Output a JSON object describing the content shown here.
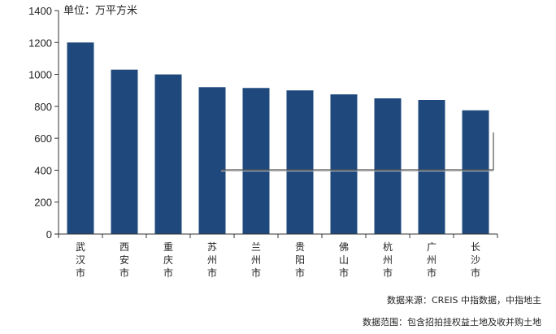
{
  "chart_data": {
    "type": "bar",
    "unit_label": "单位：万平方米",
    "categories": [
      "武汉市",
      "西安市",
      "重庆市",
      "苏州市",
      "兰州市",
      "贵阳市",
      "佛山市",
      "杭州市",
      "广州市",
      "长沙市"
    ],
    "values": [
      1200,
      1030,
      1000,
      920,
      915,
      900,
      875,
      850,
      840,
      775
    ],
    "ylim": [
      0,
      1400
    ],
    "yticks": [
      "0",
      "200",
      "400",
      "600",
      "800",
      "1000",
      "1200",
      "1400"
    ],
    "bar_color": "#1f497d",
    "grid": false
  },
  "notes": {
    "source": "数据来源：CREIS 中指数据，中指地主",
    "scope": "数据范围：包含招拍挂权益土地及收并购土地"
  }
}
